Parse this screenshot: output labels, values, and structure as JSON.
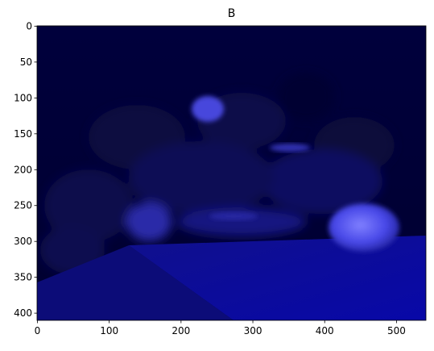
{
  "chart_data": {
    "type": "image",
    "title": "B",
    "xlim": [
      -0.5,
      541
    ],
    "ylim": [
      410,
      -0.5
    ],
    "xticks": [
      0,
      100,
      200,
      300,
      400,
      500
    ],
    "yticks": [
      0,
      50,
      100,
      150,
      200,
      250,
      300,
      350,
      400
    ]
  }
}
